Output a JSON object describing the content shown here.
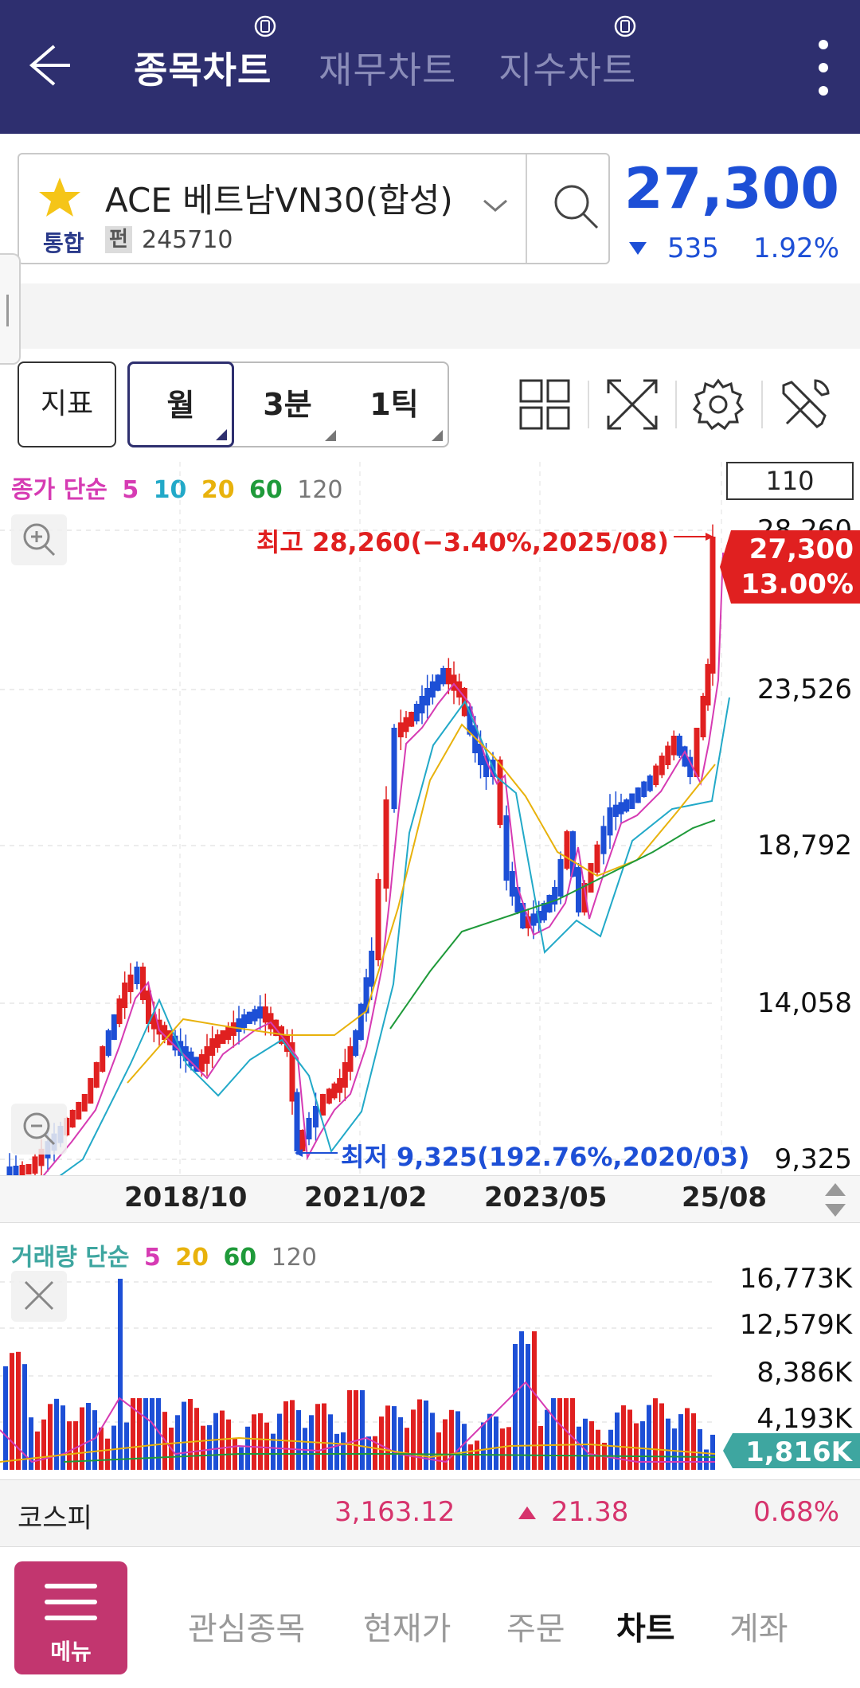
{
  "header": {
    "tabs": [
      {
        "label": "종목차트",
        "active": true
      },
      {
        "label": "재무차트",
        "active": false
      },
      {
        "label": "지수차트",
        "active": false
      }
    ]
  },
  "stock": {
    "name": "ACE 베트남VN30(합성)",
    "market": "통합",
    "badge": "펀",
    "code": "245710",
    "price": "27,300",
    "change": "535",
    "rate": "1.92%"
  },
  "toolbar": {
    "indicator_label": "지표",
    "periods": [
      "월",
      "3분",
      "1틱"
    ]
  },
  "price_chart": {
    "legend_prefix": "종가 단순",
    "ma": [
      {
        "label": "5",
        "color": "#d63bb3"
      },
      {
        "label": "10",
        "color": "#22a9c8"
      },
      {
        "label": "20",
        "color": "#e8b20c"
      },
      {
        "label": "60",
        "color": "#1f9a3a"
      },
      {
        "label": "120",
        "color": "#777777"
      }
    ],
    "count_box": "110",
    "y_labels": [
      "28,260",
      "23,526",
      "18,792",
      "14,058",
      "9,325"
    ],
    "x_labels": [
      "2018/10",
      "2021/02",
      "2023/05",
      "25/08"
    ],
    "high_note": "최고 28,260(−3.40%,2025/08)",
    "low_note": "최저 9,325(192.76%,2020/03)",
    "current_tag_price": "27,300",
    "current_tag_rate": "13.00%"
  },
  "volume_chart": {
    "legend_prefix": "거래량 단순",
    "ma": [
      {
        "label": "5",
        "color": "#d63bb3"
      },
      {
        "label": "20",
        "color": "#e8b20c"
      },
      {
        "label": "60",
        "color": "#1f9a3a"
      },
      {
        "label": "120",
        "color": "#777777"
      }
    ],
    "y_labels": [
      "16,773K",
      "12,579K",
      "8,386K",
      "4,193K"
    ],
    "current_tag": "1,816K"
  },
  "index_bar": {
    "name": "코스피",
    "value": "3,163.12",
    "change": "21.38",
    "rate": "0.68%"
  },
  "bottom_nav": {
    "menu_label": "메뉴",
    "items": [
      {
        "label": "관심종목",
        "active": false
      },
      {
        "label": "현재가",
        "active": false
      },
      {
        "label": "주문",
        "active": false
      },
      {
        "label": "차트",
        "active": true
      },
      {
        "label": "계좌",
        "active": false
      }
    ]
  },
  "colors": {
    "header_bg": "#2e2f6f",
    "up": "#e02020",
    "down": "#1d4fd6",
    "menu_bg": "#c2366f",
    "volume_tag": "#3ea6a0"
  }
}
